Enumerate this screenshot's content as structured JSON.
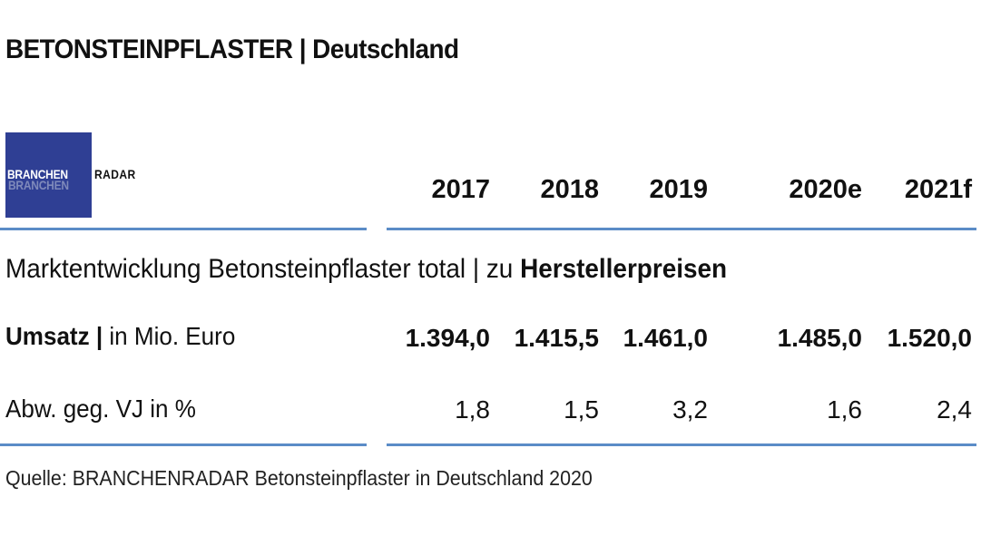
{
  "title": "BETONSTEINPFLASTER | Deutschland",
  "logo": {
    "text_left": "BRANCHEN",
    "text_right": "RADAR",
    "bg_color": "#2f3f94"
  },
  "accent_color": "#5b8cc7",
  "section": {
    "text_normal": "Marktentwicklung Betonsteinpflaster total | zu ",
    "text_bold": "Herstellerpreisen"
  },
  "rows": {
    "umsatz": {
      "label_bold": "Umsatz |",
      "label_normal": " in Mio. Euro"
    },
    "abw": {
      "label": "Abw. geg. VJ in %"
    }
  },
  "source": "Quelle: BRANCHENRADAR Betonsteinpflaster in Deutschland 2020",
  "chart_data": {
    "type": "table",
    "title": "BETONSTEINPFLASTER | Deutschland",
    "columns": [
      "2017",
      "2018",
      "2019",
      "2020e",
      "2021f"
    ],
    "rows": [
      {
        "label": "Umsatz | in Mio. Euro",
        "values": [
          "1.394,0",
          "1.415,5",
          "1.461,0",
          "1.485,0",
          "1.520,0"
        ]
      },
      {
        "label": "Abw. geg. VJ in %",
        "values": [
          "1,8",
          "1,5",
          "3,2",
          "1,6",
          "2,4"
        ]
      }
    ]
  }
}
